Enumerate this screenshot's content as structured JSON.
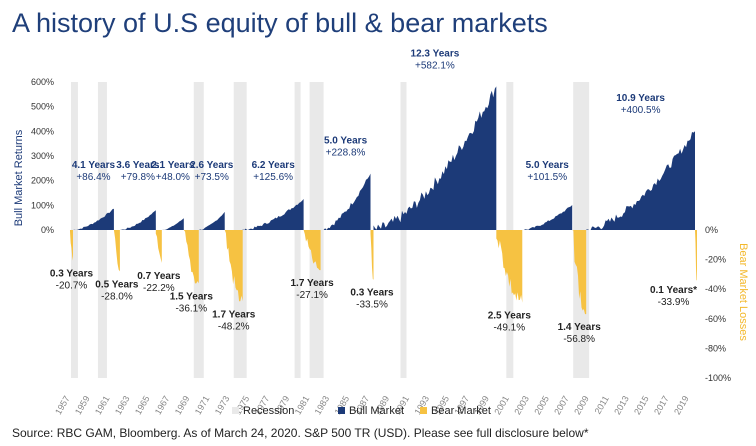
{
  "header": {
    "title": "A history of U.S equity of bull & bear markets"
  },
  "footer": {
    "source": "Source: RBC GAM, Bloomberg. As of March 24, 2020. S&P 500 TR (USD). Please see full disclosure below*"
  },
  "colors": {
    "bull": "#1c3a78",
    "bear": "#f6c242",
    "recession": "#e9e9e9",
    "bull_label": "#1c3a78",
    "bear_label": "#222222",
    "left_axis_title": "#1c3a78",
    "right_axis_title": "#f3b82b"
  },
  "chart_data": {
    "type": "area",
    "title": "A history of U.S equity of bull & bear markets",
    "x_range": [
      1956.5,
      2020.3
    ],
    "y_left": {
      "label": "Bull Market Returns",
      "range": [
        0,
        600
      ],
      "ticks": [
        "0%",
        "100%",
        "200%",
        "300%",
        "400%",
        "500%",
        "600%"
      ],
      "tick_values": [
        0,
        100,
        200,
        300,
        400,
        500,
        600
      ]
    },
    "y_right": {
      "label": "Bear Market Losses",
      "range": [
        0,
        -100
      ],
      "ticks": [
        "0%",
        "-20%",
        "-40%",
        "-60%",
        "-80%",
        "-100%"
      ],
      "tick_values": [
        0,
        -20,
        -40,
        -60,
        -80,
        -100
      ]
    },
    "x_ticks": [
      "1957",
      "1959",
      "1961",
      "1963",
      "1965",
      "1967",
      "1969",
      "1971",
      "1973",
      "1975",
      "1977",
      "1979",
      "1981",
      "1983",
      "1985",
      "1987",
      "1989",
      "1991",
      "1993",
      "1995",
      "1997",
      "1999",
      "2001",
      "2003",
      "2005",
      "2007",
      "2009",
      "2011",
      "2013",
      "2015",
      "2017",
      "2019"
    ],
    "legend": [
      "Recession",
      "Bull Market",
      "Bear Market"
    ],
    "legend_position": "bottom",
    "recessions": [
      {
        "start": 1957.6,
        "end": 1958.3
      },
      {
        "start": 1960.3,
        "end": 1961.2
      },
      {
        "start": 1969.9,
        "end": 1970.9
      },
      {
        "start": 1973.9,
        "end": 1975.2
      },
      {
        "start": 1980.0,
        "end": 1980.6
      },
      {
        "start": 1981.5,
        "end": 1982.9
      },
      {
        "start": 1990.6,
        "end": 1991.2
      },
      {
        "start": 2001.2,
        "end": 2001.9
      },
      {
        "start": 2007.9,
        "end": 2009.5
      }
    ],
    "bull_markets": [
      {
        "start": 1957.8,
        "end": 1961.9,
        "peak": 86.4,
        "years": "4.1 Years",
        "return": "+86.4%"
      },
      {
        "start": 1962.5,
        "end": 1966.1,
        "peak": 79.8,
        "years": "3.6 Years",
        "return": "+79.8%"
      },
      {
        "start": 1966.7,
        "end": 1968.9,
        "peak": 48.0,
        "years": "2.1 Years",
        "return": "+48.0%"
      },
      {
        "start": 1970.4,
        "end": 1973.0,
        "peak": 73.5,
        "years": "2.6 Years",
        "return": "+73.5%"
      },
      {
        "start": 1974.8,
        "end": 1980.9,
        "peak": 125.6,
        "years": "6.2 Years",
        "return": "+125.6%"
      },
      {
        "start": 1982.6,
        "end": 1987.6,
        "peak": 228.8,
        "years": "5.0 Years",
        "return": "+228.8%"
      },
      {
        "start": 1987.9,
        "end": 2000.2,
        "peak": 582.1,
        "years": "12.3 Years",
        "return": "+582.1%"
      },
      {
        "start": 2002.8,
        "end": 2007.8,
        "peak": 101.5,
        "years": "5.0 Years",
        "return": "+101.5%"
      },
      {
        "start": 2009.2,
        "end": 2020.1,
        "peak": 400.5,
        "years": "10.9 Years",
        "return": "+400.5%"
      }
    ],
    "bear_markets": [
      {
        "start": 1957.5,
        "end": 1957.8,
        "trough": -20.7,
        "years": "0.3 Years",
        "loss": "-20.7%"
      },
      {
        "start": 1961.9,
        "end": 1962.5,
        "trough": -28.0,
        "years": "0.5 Years",
        "loss": "-28.0%"
      },
      {
        "start": 1966.1,
        "end": 1966.7,
        "trough": -22.2,
        "years": "0.7 Years",
        "loss": "-22.2%"
      },
      {
        "start": 1968.9,
        "end": 1970.4,
        "trough": -36.1,
        "years": "1.5 Years",
        "loss": "-36.1%"
      },
      {
        "start": 1973.0,
        "end": 1974.8,
        "trough": -48.2,
        "years": "1.7 Years",
        "loss": "-48.2%"
      },
      {
        "start": 1980.9,
        "end": 1982.6,
        "trough": -27.1,
        "years": "1.7 Years",
        "loss": "-27.1%"
      },
      {
        "start": 1987.6,
        "end": 1987.9,
        "trough": -33.5,
        "years": "0.3 Years",
        "loss": "-33.5%"
      },
      {
        "start": 2000.2,
        "end": 2002.8,
        "trough": -49.1,
        "years": "2.5 Years",
        "loss": "-49.1%"
      },
      {
        "start": 2007.8,
        "end": 2009.2,
        "trough": -56.8,
        "years": "1.4 Years",
        "loss": "-56.8%"
      },
      {
        "start": 2020.1,
        "end": 2020.2,
        "trough": -33.9,
        "years": "0.1 Years*",
        "loss": "-33.9%"
      }
    ]
  }
}
